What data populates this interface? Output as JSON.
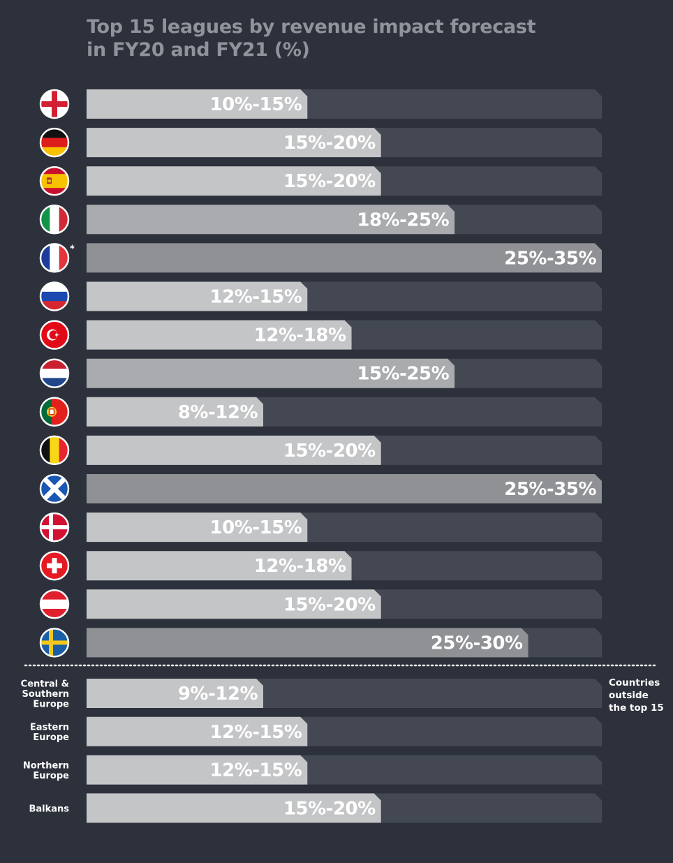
{
  "chart_data": {
    "type": "bar",
    "title": "Top 15 leagues by revenue impact forecast in FY20 and FY21 (%)",
    "title_lines": [
      "Top 15 leagues by revenue impact forecast",
      "in FY20 and FY21 (%)"
    ],
    "scale_max_pct": 35,
    "leagues": [
      {
        "country": "England",
        "flag": "england-flag",
        "label": "10%-15%",
        "upper": 15
      },
      {
        "country": "Germany",
        "flag": "germany-flag",
        "label": "15%-20%",
        "upper": 20
      },
      {
        "country": "Spain",
        "flag": "spain-flag",
        "label": "15%-20%",
        "upper": 20
      },
      {
        "country": "Italy",
        "flag": "italy-flag",
        "label": "18%-25%",
        "upper": 25
      },
      {
        "country": "France",
        "flag": "france-flag",
        "label": "25%-35%",
        "upper": 35,
        "footnote": "*"
      },
      {
        "country": "Russia",
        "flag": "russia-flag",
        "label": "12%-15%",
        "upper": 15
      },
      {
        "country": "Turkey",
        "flag": "turkey-flag",
        "label": "12%-18%",
        "upper": 18
      },
      {
        "country": "Netherlands",
        "flag": "netherlands-flag",
        "label": "15%-25%",
        "upper": 25
      },
      {
        "country": "Portugal",
        "flag": "portugal-flag",
        "label": "8%-12%",
        "upper": 12
      },
      {
        "country": "Belgium",
        "flag": "belgium-flag",
        "label": "15%-20%",
        "upper": 20
      },
      {
        "country": "Scotland",
        "flag": "scotland-flag",
        "label": "25%-35%",
        "upper": 35
      },
      {
        "country": "Denmark",
        "flag": "denmark-flag",
        "label": "10%-15%",
        "upper": 15
      },
      {
        "country": "Switzerland",
        "flag": "switzerland-flag",
        "label": "12%-18%",
        "upper": 18
      },
      {
        "country": "Austria",
        "flag": "austria-flag",
        "label": "15%-20%",
        "upper": 20
      },
      {
        "country": "Sweden",
        "flag": "sweden-flag",
        "label": "25%-30%",
        "upper": 30
      }
    ],
    "outside_note": [
      "Countries",
      "outside",
      "the top 15"
    ],
    "regions": [
      {
        "name_lines": [
          "Central &",
          "Southern",
          "Europe"
        ],
        "label": "9%-12%",
        "upper": 12
      },
      {
        "name_lines": [
          "Eastern",
          "Europe"
        ],
        "label": "12%-15%",
        "upper": 15
      },
      {
        "name_lines": [
          "Northern",
          "Europe"
        ],
        "label": "12%-15%",
        "upper": 15
      },
      {
        "name_lines": [
          "Balkans"
        ],
        "label": "15%-20%",
        "upper": 20
      }
    ],
    "colors": {
      "background": "#2c313b",
      "track": "#434852",
      "bar_light": "#c4c5c7",
      "bar_mid": "#a9abae",
      "bar_dark": "#8f9195",
      "flag_outline": "#ffffff",
      "title": "#8f939b"
    }
  }
}
